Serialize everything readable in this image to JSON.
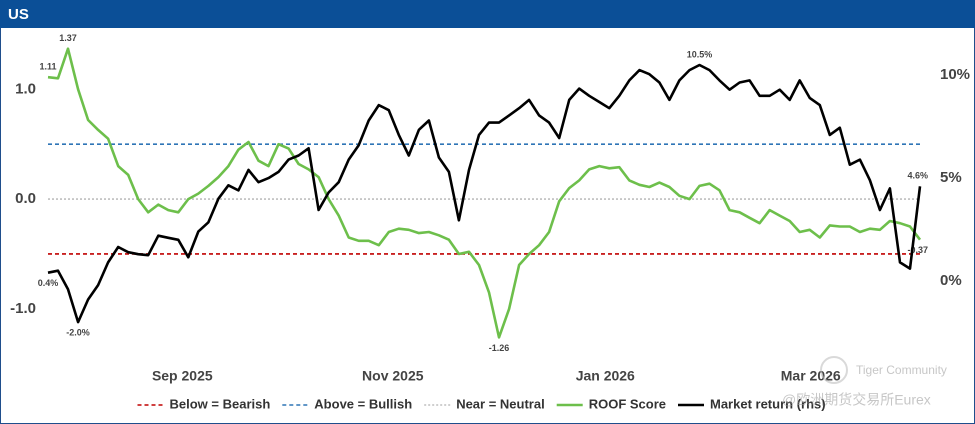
{
  "chart_data": {
    "type": "line",
    "title": "US",
    "x": [
      0,
      1,
      2,
      3,
      4,
      5,
      6,
      7,
      8,
      9,
      10,
      11,
      12,
      13,
      14,
      15,
      16,
      17,
      18,
      19,
      20,
      21,
      22,
      23,
      24,
      25,
      26,
      27,
      28,
      29,
      30,
      31,
      32,
      33,
      34,
      35,
      36,
      37,
      38,
      39,
      40,
      41,
      42,
      43,
      44,
      45,
      46,
      47,
      48,
      49,
      50,
      51,
      52,
      53,
      54,
      55,
      56,
      57,
      58,
      59,
      60,
      61,
      62,
      63,
      64,
      65,
      66,
      67,
      68,
      69,
      70,
      71,
      72,
      73,
      74,
      75,
      76,
      77,
      78,
      79,
      80,
      81,
      82,
      83,
      84,
      85,
      86,
      87
    ],
    "xlim": [
      0,
      87
    ],
    "xticks": [
      {
        "value": 13.4,
        "label": "Sep 2025"
      },
      {
        "value": 34.4,
        "label": "Nov 2025"
      },
      {
        "value": 55.6,
        "label": "Jan 2026"
      },
      {
        "value": 76.1,
        "label": "Mar 2026"
      }
    ],
    "ylim": [
      -1.42,
      1.54
    ],
    "yticks": [
      {
        "value": -1,
        "label": "-1.0"
      },
      {
        "value": 0,
        "label": "0.0"
      },
      {
        "value": 1,
        "label": "1.0"
      }
    ],
    "y2lim": [
      -3.6,
      12.2
    ],
    "y2ticks": [
      {
        "value": 0,
        "label": "0%"
      },
      {
        "value": 5,
        "label": "5%"
      },
      {
        "value": 10,
        "label": "10%"
      }
    ],
    "reference_lines": [
      {
        "name": "Below = Bearish",
        "value": -0.5,
        "color": "#c00000",
        "dash": "4 3"
      },
      {
        "name": "Above = Bullish",
        "value": 0.5,
        "color": "#2e75b6",
        "dash": "4 3"
      },
      {
        "name": "Near = Neutral",
        "value": 0,
        "color": "#bfbfbf",
        "dash": "2 2"
      }
    ],
    "series": [
      {
        "name": "ROOF Score",
        "color": "#6dbf4b",
        "values": [
          1.11,
          1.1,
          1.37,
          1.0,
          0.72,
          0.63,
          0.55,
          0.3,
          0.22,
          0.0,
          -0.12,
          -0.05,
          -0.1,
          -0.12,
          0.0,
          0.05,
          0.12,
          0.2,
          0.3,
          0.45,
          0.52,
          0.35,
          0.3,
          0.5,
          0.46,
          0.32,
          0.27,
          0.2,
          0.0,
          -0.15,
          -0.35,
          -0.38,
          -0.38,
          -0.42,
          -0.3,
          -0.27,
          -0.28,
          -0.31,
          -0.3,
          -0.33,
          -0.37,
          -0.5,
          -0.48,
          -0.6,
          -0.85,
          -1.26,
          -1.0,
          -0.6,
          -0.5,
          -0.42,
          -0.3,
          -0.02,
          0.1,
          0.17,
          0.27,
          0.3,
          0.28,
          0.29,
          0.17,
          0.13,
          0.11,
          0.15,
          0.11,
          0.03,
          0.0,
          0.12,
          0.14,
          0.08,
          -0.1,
          -0.12,
          -0.17,
          -0.22,
          -0.1,
          -0.15,
          -0.2,
          -0.3,
          -0.28,
          -0.35,
          -0.24,
          -0.25,
          -0.25,
          -0.3,
          -0.27,
          -0.28,
          -0.2,
          -0.22,
          -0.25,
          -0.37
        ],
        "value_labels": [
          "1.11",
          null,
          "1.37",
          null,
          null,
          null,
          null,
          null,
          null,
          null,
          null,
          null,
          null,
          null,
          null,
          null,
          null,
          null,
          null,
          null,
          null,
          null,
          null,
          null,
          null,
          null,
          null,
          null,
          null,
          null,
          null,
          null,
          null,
          null,
          null,
          null,
          null,
          null,
          null,
          null,
          null,
          null,
          null,
          null,
          null,
          "-1.26",
          null,
          null,
          null,
          null,
          null,
          null,
          null,
          null,
          null,
          null,
          null,
          null,
          null,
          null,
          null,
          null,
          null,
          null,
          null,
          null,
          null,
          null,
          null,
          null,
          null,
          null,
          null,
          null,
          null,
          null,
          null,
          null,
          null,
          null,
          null,
          null,
          null,
          null,
          null,
          null,
          null,
          "-0.37"
        ]
      },
      {
        "name": "Market return (rhs)",
        "color": "#000000",
        "axis": "y2",
        "values": [
          0.4,
          0.5,
          -0.4,
          -2.0,
          -0.9,
          -0.2,
          0.9,
          1.65,
          1.4,
          1.3,
          1.25,
          2.2,
          2.1,
          2.0,
          1.15,
          2.4,
          2.85,
          4.0,
          4.65,
          4.4,
          5.4,
          4.8,
          5.0,
          5.3,
          5.9,
          6.1,
          6.45,
          3.45,
          4.3,
          4.8,
          5.9,
          6.6,
          7.8,
          8.55,
          8.3,
          7.1,
          6.1,
          7.35,
          7.8,
          6.0,
          5.3,
          2.95,
          5.4,
          7.1,
          7.7,
          7.7,
          8.05,
          8.4,
          8.8,
          8.05,
          7.7,
          6.95,
          8.8,
          9.35,
          9.0,
          8.7,
          8.4,
          9.0,
          9.75,
          10.25,
          10.05,
          9.65,
          8.8,
          9.75,
          10.25,
          10.5,
          10.25,
          9.75,
          9.3,
          9.65,
          9.75,
          9.0,
          9.0,
          9.3,
          8.8,
          9.75,
          8.9,
          8.55,
          7.1,
          7.45,
          5.65,
          5.9,
          4.9,
          3.45,
          4.5,
          0.9,
          0.6,
          4.6
        ],
        "value_labels": [
          "0.4%",
          null,
          null,
          "-2.0%",
          null,
          null,
          null,
          null,
          null,
          null,
          null,
          null,
          null,
          null,
          null,
          null,
          null,
          null,
          null,
          null,
          null,
          null,
          null,
          null,
          null,
          null,
          null,
          null,
          null,
          null,
          null,
          null,
          null,
          null,
          null,
          null,
          null,
          null,
          null,
          null,
          null,
          null,
          null,
          null,
          null,
          null,
          null,
          null,
          null,
          null,
          null,
          null,
          null,
          null,
          null,
          null,
          null,
          null,
          null,
          null,
          null,
          null,
          null,
          null,
          null,
          "10.5%",
          null,
          null,
          null,
          null,
          null,
          null,
          null,
          null,
          null,
          null,
          null,
          null,
          null,
          null,
          null,
          null,
          null,
          null,
          null,
          null,
          null,
          "4.6%"
        ]
      }
    ],
    "watermark": [
      "Tiger Community",
      "@欧洲期货交易所Eurex"
    ]
  }
}
